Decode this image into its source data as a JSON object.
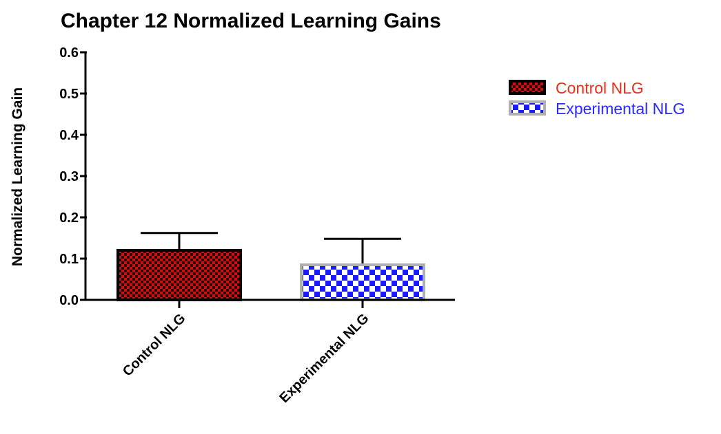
{
  "chart_data": {
    "type": "bar",
    "title": "Chapter 12 Normalized Learning Gains",
    "xlabel": "",
    "ylabel": "Normalized Learning Gain",
    "ylim": [
      0,
      0.6
    ],
    "yticks": [
      "0.0",
      "0.1",
      "0.2",
      "0.3",
      "0.4",
      "0.5",
      "0.6"
    ],
    "categories": [
      "Control NLG",
      "Experimental NLG"
    ],
    "values": [
      0.12,
      0.085
    ],
    "error_upper": [
      0.162,
      0.148
    ],
    "grid": false,
    "legend_position": "top-right",
    "series": [
      {
        "name": "Control NLG",
        "value": 0.12,
        "pattern": "checker",
        "fill_dark": "#cc1111",
        "fill_light": "#330000",
        "border": "#000000",
        "label_color": "#e8301a"
      },
      {
        "name": "Experimental NLG",
        "value": 0.085,
        "pattern": "checker",
        "fill_dark": "#1a1aff",
        "fill_light": "#ffffff",
        "border": "#b0b0b0",
        "label_color": "#2a2aff"
      }
    ]
  }
}
